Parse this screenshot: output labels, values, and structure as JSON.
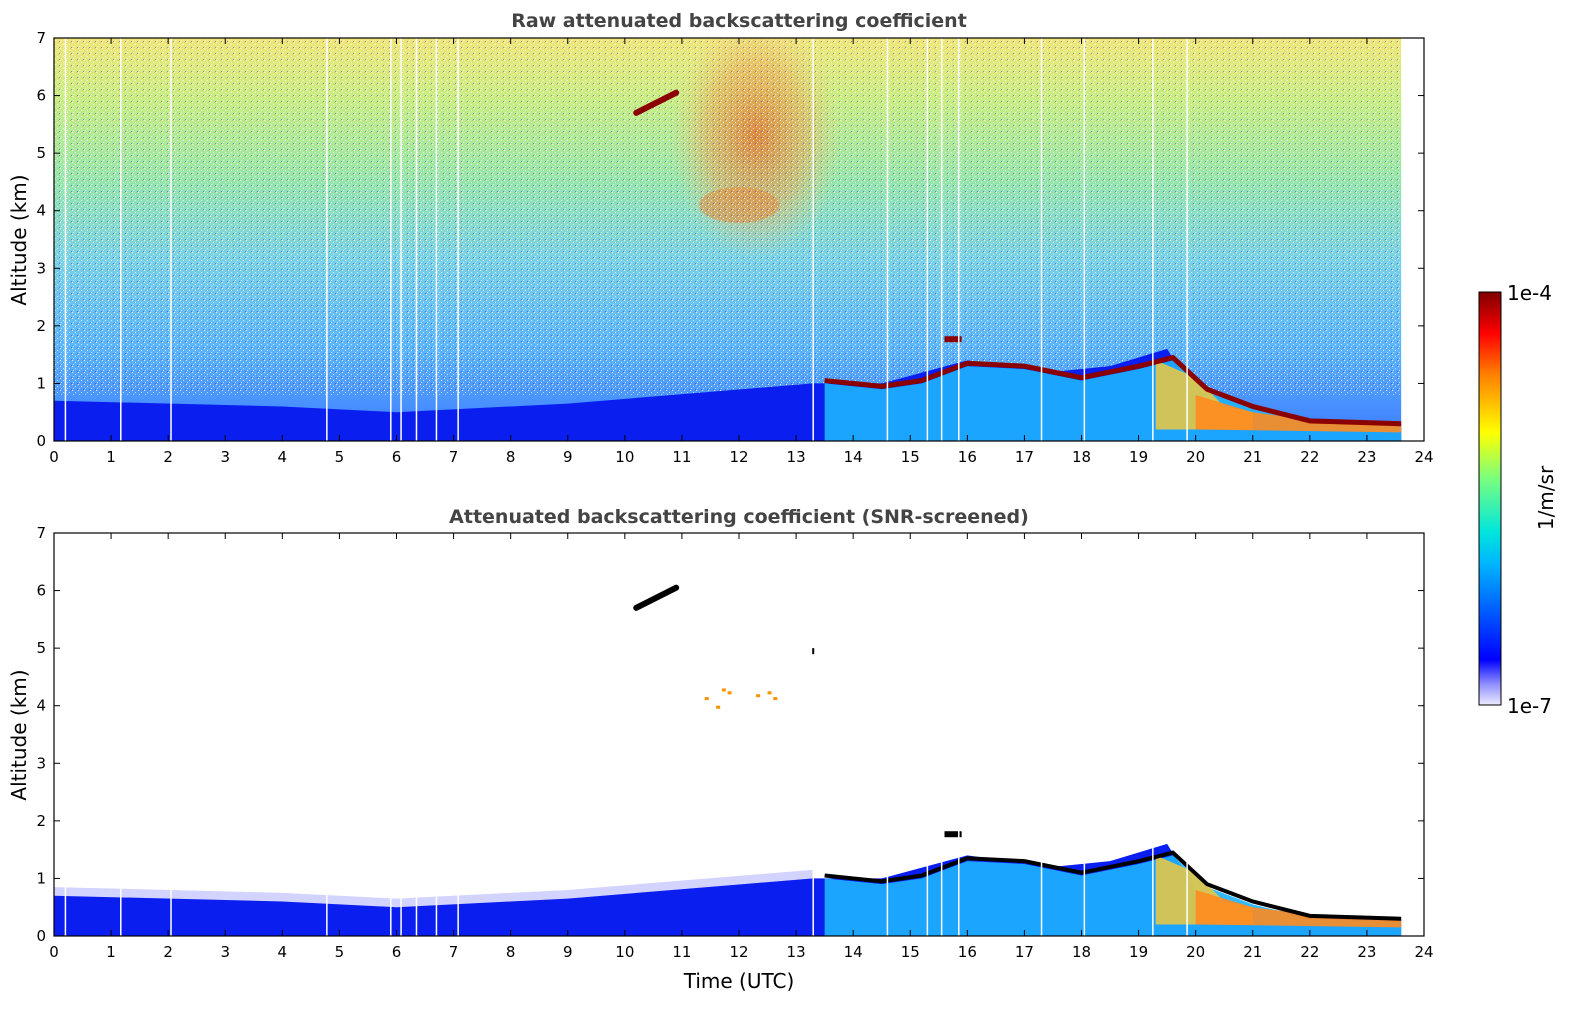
{
  "chart_data": [
    {
      "type": "heatmap",
      "title": "Raw attenuated backscattering coefficient",
      "xlabel": "",
      "ylabel": "Altitude (km)",
      "xlim": [
        0,
        24
      ],
      "ylim": [
        0,
        7
      ],
      "x_ticks": [
        0,
        1,
        2,
        3,
        4,
        5,
        6,
        7,
        8,
        9,
        10,
        11,
        12,
        13,
        14,
        15,
        16,
        17,
        18,
        19,
        20,
        21,
        22,
        23,
        24
      ],
      "y_ticks": [
        0,
        1,
        2,
        3,
        4,
        5,
        6,
        7
      ],
      "data_end_time": 23.6,
      "boundary_layer_top_km": [
        {
          "t": 0,
          "h": 0.7
        },
        {
          "t": 4,
          "h": 0.6
        },
        {
          "t": 6,
          "h": 0.5
        },
        {
          "t": 9,
          "h": 0.65
        },
        {
          "t": 13.3,
          "h": 1.0
        },
        {
          "t": 14.5,
          "h": 1.0
        },
        {
          "t": 16,
          "h": 1.4
        },
        {
          "t": 17.5,
          "h": 1.2
        },
        {
          "t": 18.5,
          "h": 1.3
        },
        {
          "t": 19.5,
          "h": 1.6
        },
        {
          "t": 20,
          "h": 0.8
        },
        {
          "t": 21,
          "h": 0.5
        },
        {
          "t": 22.5,
          "h": 0.3
        },
        {
          "t": 23.6,
          "h": 0.3
        }
      ],
      "cloud_layer_km": [
        {
          "t": 13.5,
          "h": 1.05
        },
        {
          "t": 14.5,
          "h": 0.95
        },
        {
          "t": 15.2,
          "h": 1.05
        },
        {
          "t": 16,
          "h": 1.35
        },
        {
          "t": 17,
          "h": 1.3
        },
        {
          "t": 18,
          "h": 1.1
        },
        {
          "t": 19,
          "h": 1.3
        },
        {
          "t": 19.6,
          "h": 1.45
        },
        {
          "t": 20.2,
          "h": 0.9
        },
        {
          "t": 21,
          "h": 0.6
        },
        {
          "t": 22,
          "h": 0.35
        },
        {
          "t": 23.6,
          "h": 0.3
        }
      ],
      "features": [
        {
          "name": "elevated layer",
          "t_start": 10.2,
          "t_end": 10.9,
          "h_start": 5.7,
          "h_end": 6.05
        },
        {
          "name": "high noise region",
          "t_start": 10.8,
          "t_end": 13.8,
          "h_start": 3.6,
          "h_end": 7
        }
      ]
    },
    {
      "type": "heatmap",
      "title": "Attenuated backscattering coefficient (SNR-screened)",
      "xlabel": "Time (UTC)",
      "ylabel": "Altitude (km)",
      "xlim": [
        0,
        24
      ],
      "ylim": [
        0,
        7
      ],
      "x_ticks": [
        0,
        1,
        2,
        3,
        4,
        5,
        6,
        7,
        8,
        9,
        10,
        11,
        12,
        13,
        14,
        15,
        16,
        17,
        18,
        19,
        20,
        21,
        22,
        23,
        24
      ],
      "y_ticks": [
        0,
        1,
        2,
        3,
        4,
        5,
        6,
        7
      ]
    }
  ],
  "colorbar": {
    "max_label": "1e-4",
    "min_label": "1e-7",
    "unit_label": "1/m/sr",
    "scale": "log"
  },
  "colors": {
    "title": "#444444",
    "cloud": "#8b0000",
    "boundary_layer": "#0a1ef0",
    "residual": "#1eb4ff"
  }
}
